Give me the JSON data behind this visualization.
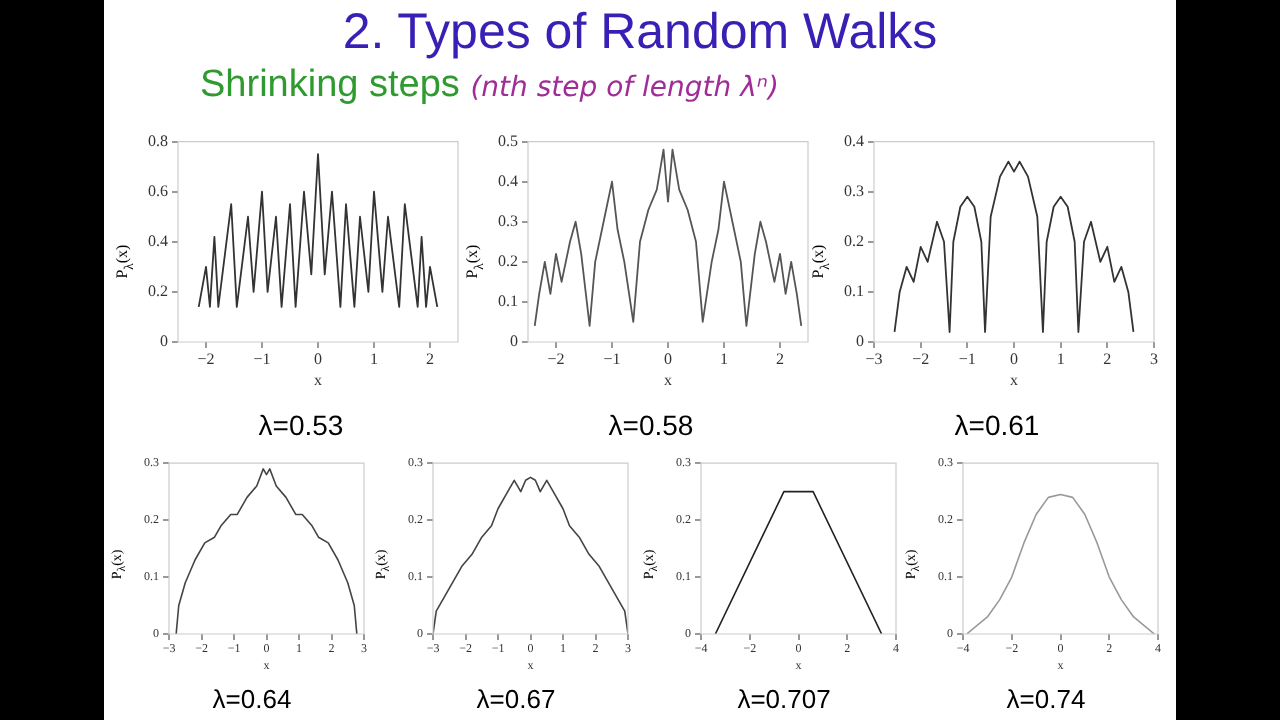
{
  "chart_data": [
    {
      "type": "other",
      "title": "2. Types of Random Walks",
      "subtitle": "Shrinking steps (nth step of length λⁿ)"
    },
    {
      "type": "line",
      "title": "λ=0.53",
      "xlabel": "x",
      "ylabel": "P$_{λ}$(x)",
      "xlim": [
        -2.5,
        2.5
      ],
      "xticks": [
        -2,
        -1,
        0,
        1,
        2
      ],
      "ylim": [
        0,
        0.8
      ],
      "yticks": [
        0,
        0.2,
        0.4,
        0.6,
        0.8
      ],
      "marker": "none",
      "series": [
        {
          "color": "#333333",
          "x": [
            -2.13,
            -2.0,
            -1.93,
            -1.85,
            -1.78,
            -1.55,
            -1.45,
            -1.25,
            -1.15,
            -1.0,
            -0.9,
            -0.75,
            -0.65,
            -0.5,
            -0.4,
            -0.25,
            -0.12,
            0,
            0.12,
            0.25,
            0.4,
            0.5,
            0.65,
            0.75,
            0.9,
            1.0,
            1.15,
            1.25,
            1.45,
            1.55,
            1.78,
            1.85,
            1.93,
            2.0,
            2.13
          ],
          "values": [
            0.14,
            0.3,
            0.14,
            0.42,
            0.14,
            0.55,
            0.14,
            0.5,
            0.2,
            0.6,
            0.2,
            0.5,
            0.14,
            0.55,
            0.14,
            0.6,
            0.27,
            0.75,
            0.27,
            0.6,
            0.14,
            0.55,
            0.14,
            0.5,
            0.2,
            0.6,
            0.2,
            0.5,
            0.14,
            0.55,
            0.14,
            0.42,
            0.14,
            0.3,
            0.14
          ]
        }
      ]
    },
    {
      "type": "line",
      "title": "λ=0.58",
      "xlabel": "x",
      "ylabel": "P$_{λ}$(x)",
      "xlim": [
        -2.5,
        2.5
      ],
      "xticks": [
        -2,
        -1,
        0,
        1,
        2
      ],
      "ylim": [
        0,
        0.5
      ],
      "yticks": [
        0,
        0.1,
        0.2,
        0.3,
        0.4,
        0.5
      ],
      "marker": "none",
      "series": [
        {
          "color": "#555555",
          "x": [
            -2.38,
            -2.3,
            -2.2,
            -2.1,
            -2.0,
            -1.9,
            -1.75,
            -1.65,
            -1.55,
            -1.4,
            -1.3,
            -1.15,
            -1.0,
            -0.9,
            -0.78,
            -0.62,
            -0.5,
            -0.35,
            -0.2,
            -0.08,
            0,
            0.08,
            0.2,
            0.35,
            0.5,
            0.62,
            0.78,
            0.9,
            1.0,
            1.15,
            1.3,
            1.4,
            1.55,
            1.65,
            1.75,
            1.9,
            2.0,
            2.1,
            2.2,
            2.3,
            2.38
          ],
          "values": [
            0.04,
            0.12,
            0.2,
            0.12,
            0.22,
            0.15,
            0.25,
            0.3,
            0.22,
            0.04,
            0.2,
            0.3,
            0.4,
            0.28,
            0.2,
            0.05,
            0.25,
            0.33,
            0.38,
            0.48,
            0.35,
            0.48,
            0.38,
            0.33,
            0.25,
            0.05,
            0.2,
            0.28,
            0.4,
            0.3,
            0.2,
            0.04,
            0.22,
            0.3,
            0.25,
            0.15,
            0.22,
            0.12,
            0.2,
            0.12,
            0.04
          ]
        }
      ]
    },
    {
      "type": "line",
      "title": "λ=0.61",
      "xlabel": "x",
      "ylabel": "P$_{λ}$(x)",
      "xlim": [
        -3,
        3
      ],
      "xticks": [
        -3,
        -2,
        -1,
        0,
        1,
        2,
        3
      ],
      "ylim": [
        0,
        0.4
      ],
      "yticks": [
        0,
        0.1,
        0.2,
        0.3,
        0.4
      ],
      "marker": "none",
      "series": [
        {
          "color": "#333333",
          "x": [
            -2.56,
            -2.45,
            -2.3,
            -2.15,
            -2.0,
            -1.85,
            -1.65,
            -1.5,
            -1.38,
            -1.3,
            -1.15,
            -1.0,
            -0.85,
            -0.7,
            -0.62,
            -0.5,
            -0.3,
            -0.12,
            0,
            0.12,
            0.3,
            0.5,
            0.62,
            0.7,
            0.85,
            1.0,
            1.15,
            1.3,
            1.38,
            1.5,
            1.65,
            1.85,
            2.0,
            2.15,
            2.3,
            2.45,
            2.56
          ],
          "values": [
            0.02,
            0.1,
            0.15,
            0.12,
            0.19,
            0.16,
            0.24,
            0.2,
            0.02,
            0.2,
            0.27,
            0.29,
            0.27,
            0.2,
            0.02,
            0.25,
            0.33,
            0.36,
            0.34,
            0.36,
            0.33,
            0.25,
            0.02,
            0.2,
            0.27,
            0.29,
            0.27,
            0.2,
            0.02,
            0.2,
            0.24,
            0.16,
            0.19,
            0.12,
            0.15,
            0.1,
            0.02
          ]
        }
      ]
    },
    {
      "type": "line",
      "title": "λ=0.64",
      "xlabel": "x",
      "ylabel": "P$_{λ}$(x)",
      "xlim": [
        -3,
        3
      ],
      "xticks": [
        -3,
        -2,
        -1,
        0,
        1,
        2,
        3
      ],
      "ylim": [
        0,
        0.3
      ],
      "yticks": [
        0,
        0.1,
        0.2,
        0.3
      ],
      "marker": "none",
      "series": [
        {
          "color": "#444444",
          "x": [
            -2.78,
            -2.7,
            -2.5,
            -2.2,
            -1.9,
            -1.6,
            -1.4,
            -1.1,
            -0.9,
            -0.6,
            -0.3,
            -0.1,
            0,
            0.1,
            0.3,
            0.6,
            0.9,
            1.1,
            1.4,
            1.6,
            1.9,
            2.2,
            2.5,
            2.7,
            2.78
          ],
          "values": [
            0,
            0.05,
            0.09,
            0.13,
            0.16,
            0.17,
            0.19,
            0.21,
            0.21,
            0.24,
            0.26,
            0.29,
            0.28,
            0.29,
            0.26,
            0.24,
            0.21,
            0.21,
            0.19,
            0.17,
            0.16,
            0.13,
            0.09,
            0.05,
            0
          ]
        }
      ]
    },
    {
      "type": "line",
      "title": "λ=0.67",
      "xlabel": "x",
      "ylabel": "P$_{λ}$(x)",
      "xlim": [
        -3,
        3
      ],
      "xticks": [
        -3,
        -2,
        -1,
        0,
        1,
        2,
        3
      ],
      "ylim": [
        0,
        0.3
      ],
      "yticks": [
        0,
        0.1,
        0.2,
        0.3
      ],
      "marker": "none",
      "series": [
        {
          "color": "#444444",
          "x": [
            -3.0,
            -2.9,
            -2.5,
            -2.1,
            -1.8,
            -1.5,
            -1.2,
            -1.0,
            -0.7,
            -0.5,
            -0.3,
            -0.15,
            0,
            0.15,
            0.3,
            0.5,
            0.7,
            1.0,
            1.2,
            1.5,
            1.8,
            2.1,
            2.5,
            2.9,
            3.0
          ],
          "values": [
            0,
            0.04,
            0.08,
            0.12,
            0.14,
            0.17,
            0.19,
            0.22,
            0.25,
            0.27,
            0.25,
            0.27,
            0.275,
            0.27,
            0.25,
            0.27,
            0.25,
            0.22,
            0.19,
            0.17,
            0.14,
            0.12,
            0.08,
            0.04,
            0
          ]
        }
      ]
    },
    {
      "type": "line",
      "title": "λ=0.707",
      "xlabel": "x",
      "ylabel": "P$_{λ}$(x)",
      "xlim": [
        -4,
        4
      ],
      "xticks": [
        -4,
        -2,
        0,
        2,
        4
      ],
      "ylim": [
        0,
        0.3
      ],
      "yticks": [
        0,
        0.1,
        0.2,
        0.3
      ],
      "marker": "none",
      "series": [
        {
          "color": "#222222",
          "x": [
            -3.41,
            -0.6,
            0.6,
            3.41
          ],
          "values": [
            0,
            0.25,
            0.25,
            0
          ]
        }
      ]
    },
    {
      "type": "line",
      "title": "λ=0.74",
      "xlabel": "x",
      "ylabel": "P$_{λ}$(x)",
      "xlim": [
        -4,
        4
      ],
      "xticks": [
        -4,
        -2,
        0,
        2,
        4
      ],
      "ylim": [
        0,
        0.3
      ],
      "yticks": [
        0,
        0.1,
        0.2,
        0.3
      ],
      "marker": "none",
      "series": [
        {
          "color": "#999999",
          "x": [
            -3.85,
            -3,
            -2.5,
            -2,
            -1.5,
            -1,
            -0.5,
            0,
            0.5,
            1,
            1.5,
            2,
            2.5,
            3,
            3.85
          ],
          "values": [
            0,
            0.03,
            0.06,
            0.1,
            0.16,
            0.21,
            0.24,
            0.245,
            0.24,
            0.21,
            0.16,
            0.1,
            0.06,
            0.03,
            0
          ]
        }
      ]
    }
  ]
}
